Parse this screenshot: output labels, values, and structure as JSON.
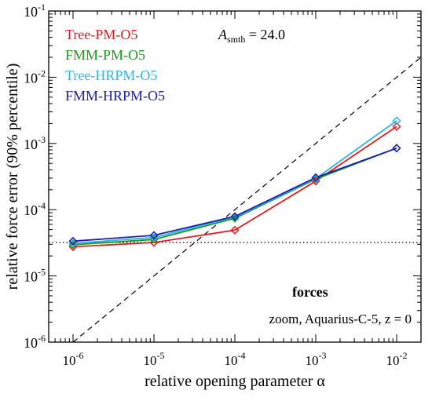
{
  "chart_data": {
    "type": "line",
    "xscale": "log",
    "yscale": "log",
    "xlabel_text": "relative opening parameter ",
    "xlabel_symbol": "α",
    "ylabel": "relative force error (90% percentile)",
    "xlim": [
      5e-07,
      0.02
    ],
    "ylim": [
      1e-06,
      0.1
    ],
    "x_ticks": [
      {
        "value": 1e-06,
        "base": "10",
        "exp": "-6"
      },
      {
        "value": 1e-05,
        "base": "10",
        "exp": "-5"
      },
      {
        "value": 0.0001,
        "base": "10",
        "exp": "-4"
      },
      {
        "value": 0.001,
        "base": "10",
        "exp": "-3"
      },
      {
        "value": 0.01,
        "base": "10",
        "exp": "-2"
      }
    ],
    "y_ticks": [
      {
        "value": 1e-06,
        "base": "10",
        "exp": "-6"
      },
      {
        "value": 1e-05,
        "base": "10",
        "exp": "-5"
      },
      {
        "value": 0.0001,
        "base": "10",
        "exp": "-4"
      },
      {
        "value": 0.001,
        "base": "10",
        "exp": "-3"
      },
      {
        "value": 0.01,
        "base": "10",
        "exp": "-2"
      },
      {
        "value": 0.1,
        "base": "10",
        "exp": "-1"
      }
    ],
    "x": [
      1e-06,
      1e-05,
      0.0001,
      0.001,
      0.01
    ],
    "series": [
      {
        "name": "Tree-PM-O5",
        "color": "#e8191c",
        "values": [
          2.75e-05,
          3.2e-05,
          4.9e-05,
          0.00027,
          0.0018
        ]
      },
      {
        "name": "FMM-PM-O5",
        "color": "#1a9a1a",
        "values": [
          2.95e-05,
          3.55e-05,
          7.4e-05,
          0.00029,
          0.00085
        ]
      },
      {
        "name": "Tree-HRPM-O5",
        "color": "#29b6e8",
        "values": [
          3.1e-05,
          3.8e-05,
          7.7e-05,
          0.000295,
          0.0022
        ]
      },
      {
        "name": "FMM-HRPM-O5",
        "color": "#1c1cb4",
        "values": [
          3.35e-05,
          4.1e-05,
          7.9e-05,
          0.000305,
          0.00085
        ]
      }
    ],
    "reference_lines": [
      {
        "style": "dashed",
        "x": [
          1e-06,
          0.02
        ],
        "y": [
          1e-06,
          0.02
        ]
      },
      {
        "style": "dotted",
        "x": [
          5e-07,
          0.02
        ],
        "y": [
          3.2e-05,
          3.2e-05
        ]
      }
    ],
    "annotations": {
      "smoothing_symbol": "A",
      "smoothing_sub": "smth",
      "smoothing_value": " = 24.0",
      "forces_label": "forces",
      "run_label": "zoom, Aquarius-C-5, z = 0"
    },
    "legend_position": "top-left",
    "grid": false
  }
}
